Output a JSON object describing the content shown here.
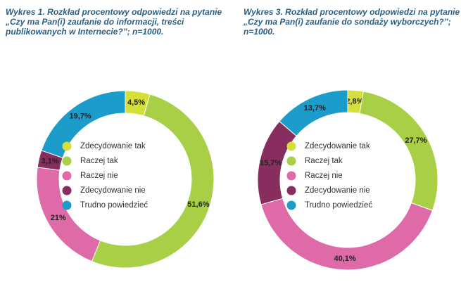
{
  "chart_data": [
    {
      "type": "pie",
      "donut": true,
      "title": [
        "Wykres 1. Rozkład procentowy odpowiedzi na pytanie",
        "„Czy ma Pan(i) zaufanie do informacji, treści",
        "publikowanych w Internecie?”; n=1000."
      ],
      "categories": [
        "Zdecydowanie tak",
        "Raczej tak",
        "Raczej nie",
        "Zdecydowanie nie",
        "Trudno powiedzieć"
      ],
      "values": [
        4.5,
        51.6,
        21,
        3.1,
        19.7
      ],
      "value_labels": [
        "4,5%",
        "51,6%",
        "21%",
        "3,1%",
        "19,7%"
      ],
      "colors": [
        "#d5df3a",
        "#a8cf45",
        "#de6aa8",
        "#872e5f",
        "#1c9ccb"
      ]
    },
    {
      "type": "pie",
      "donut": true,
      "title": [
        "Wykres 3. Rozkład procentowy odpowiedzi na pytanie",
        "„Czy ma Pan(i) zaufanie do sondaży wyborczych?”;",
        "n=1000."
      ],
      "categories": [
        "Zdecydowanie tak",
        "Raczej tak",
        "Raczej nie",
        "Zdecydowanie nie",
        "Trudno powiedzieć"
      ],
      "values": [
        2.8,
        27.7,
        40.1,
        15.7,
        13.7
      ],
      "value_labels": [
        "2,8%",
        "27,7%",
        "40,1%",
        "15,7%",
        "13,7%"
      ],
      "colors": [
        "#d5df3a",
        "#a8cf45",
        "#de6aa8",
        "#872e5f",
        "#1c9ccb"
      ]
    }
  ]
}
